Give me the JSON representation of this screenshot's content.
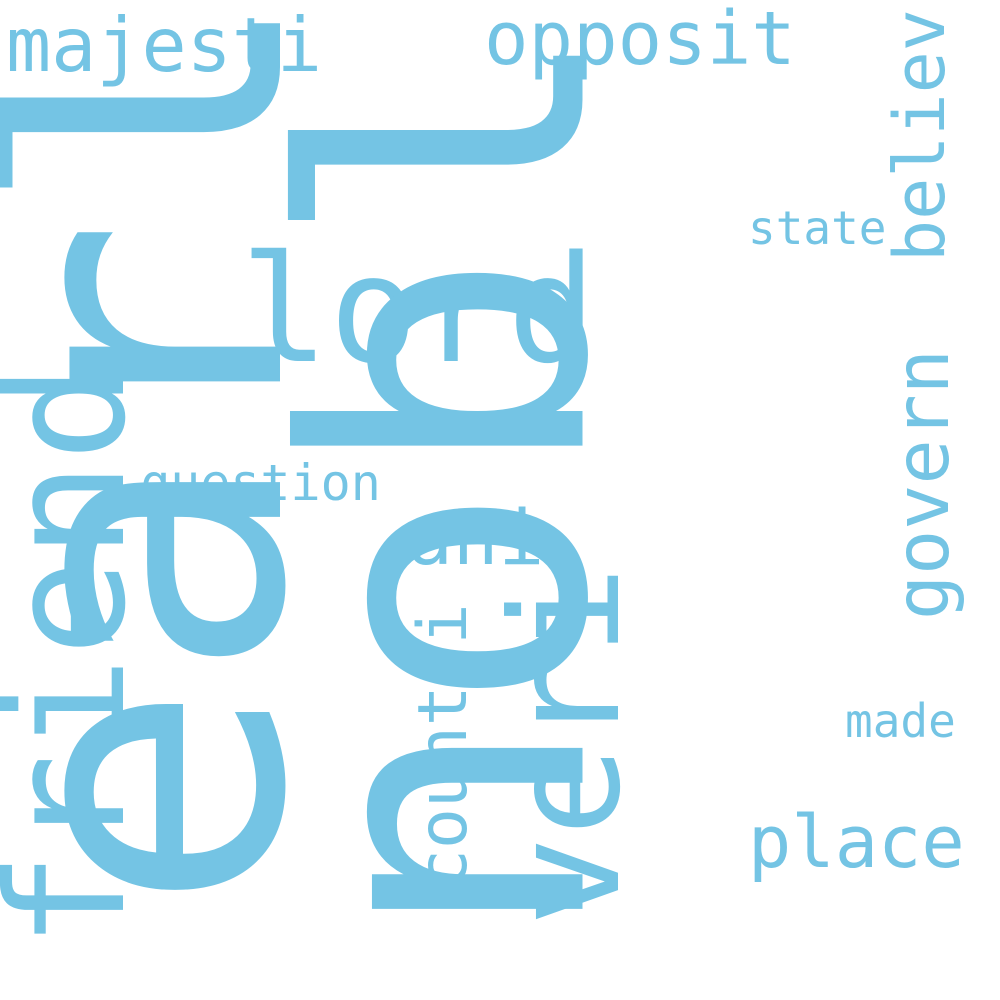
{
  "color": "#74c4e4",
  "words": {
    "earl": "earl",
    "nobl": "nobl",
    "lord": "lord",
    "friend": "friend",
    "veri": "veri",
    "majesti": "majesti",
    "opposit": "opposit",
    "believ": "believ",
    "state": "state",
    "govern": "govern",
    "question": "question",
    "ani": "ani",
    "countri": "countri",
    "made": "made",
    "place": "place"
  }
}
